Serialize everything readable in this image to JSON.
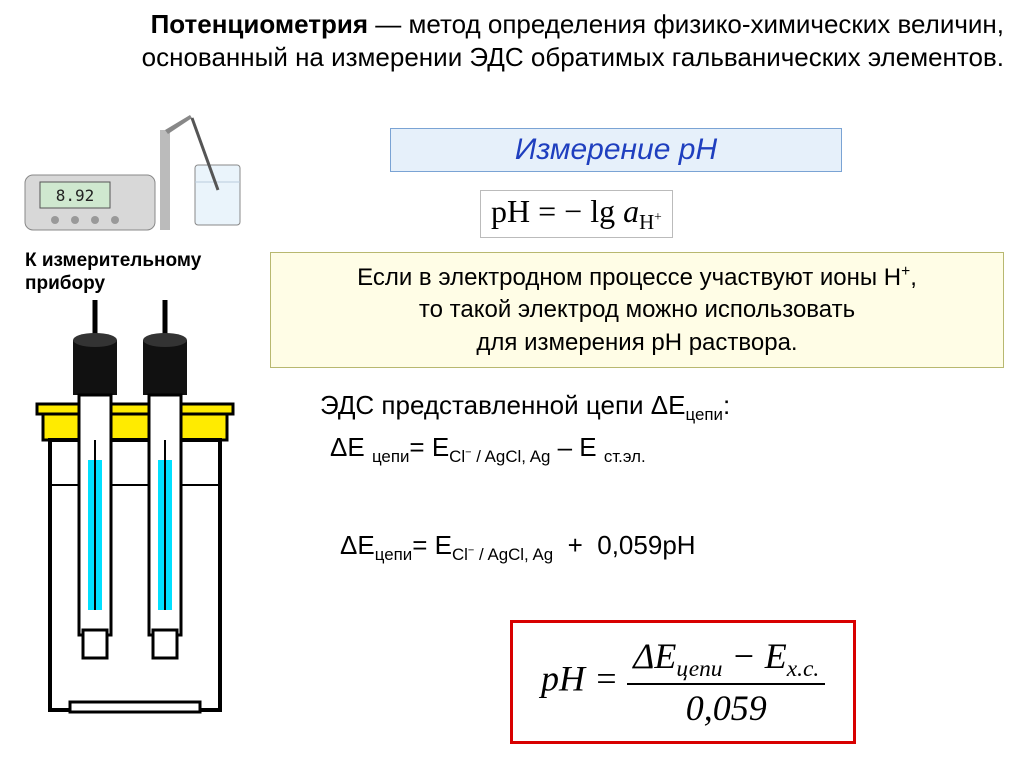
{
  "title": {
    "bold": "Потенциометрия",
    "rest": " — метод определения физико-химических величин, основанный на измерении ЭДС обратимых гальванических элементов."
  },
  "measure_label_l1": "К измерительному",
  "measure_label_l2": "прибору",
  "ph_title": "Измерение рН",
  "formula_ph_html": "pH = − lg <i>a</i><sub>H<sup>+</sup></sub>",
  "info_box_html": "Если в электродном процессе участвуют ионы H<sup>+</sup>,<br>то такой электрод можно использовать<br>для измерения pH раствора.",
  "eds_line1_html": "ЭДС представленной цепи ΔE<sub>цепи</sub>:",
  "eds_line2_html": "ΔE <sub>цепи</sub>= E<sub>Cl<sup>−</sup> / AgCl, Ag</sub> – E <sub>ст.эл.</sub>",
  "eds_line3_html": "ΔE<sub>цепи</sub>= E<sub>Cl<sup>−</sup> / AgCl, Ag</sub>&nbsp;&nbsp;+&nbsp;&nbsp;0,059pH",
  "final_formula": {
    "lhs": "pH",
    "num": "ΔE<sub>цепи</sub> − E<sub>x.c.</sub>",
    "den": "0,059"
  },
  "colors": {
    "ph_title_bg": "#e6f0fa",
    "ph_title_border": "#7aa3d4",
    "ph_title_text": "#1f3fbf",
    "info_bg": "#fffde6",
    "info_border": "#b8b870",
    "final_border": "#d80000",
    "electrode_yellow": "#ffeb00",
    "electrode_cyan": "#00e0ff"
  },
  "ph_meter_display": "8.92"
}
